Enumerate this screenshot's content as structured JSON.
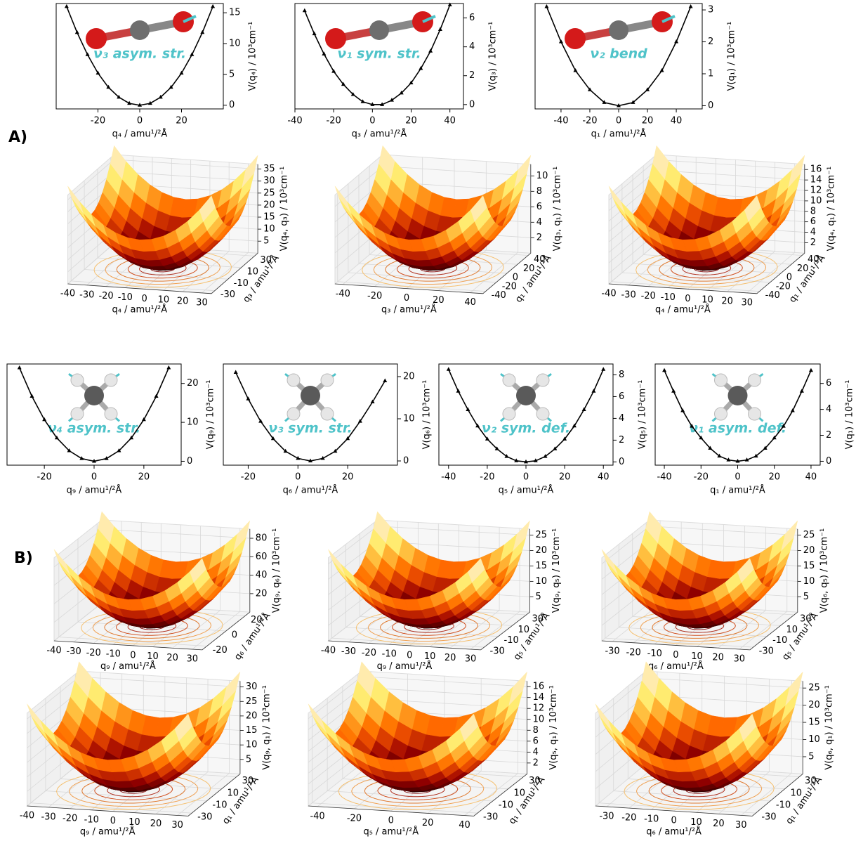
{
  "labels": [
    "A)",
    "B)"
  ],
  "chart_data": [
    {
      "type": "line",
      "xlabel": "q₄  / amu¹/²Å",
      "ylabel": "V(q₄) / 10³cm⁻¹",
      "annotation": "ν₃ asym. str.",
      "color": "#000000",
      "x": [
        -35,
        -30,
        -25,
        -20,
        -15,
        -10,
        -5,
        0,
        5,
        10,
        15,
        20,
        25,
        30,
        35
      ],
      "values": [
        16,
        11.8,
        8.2,
        5.2,
        2.9,
        1.3,
        0.3,
        0,
        0.3,
        1.3,
        2.9,
        5.2,
        8.2,
        11.8,
        16
      ],
      "xlim": [
        -40,
        40
      ],
      "ylim": [
        -0.6,
        16.5
      ],
      "xticks": [
        -20,
        0,
        20
      ],
      "yticks": [
        0,
        5,
        10,
        15
      ]
    },
    {
      "type": "line",
      "xlabel": "q₃  / amu¹/²Å",
      "ylabel": "V(q₃) / 10³cm⁻¹",
      "annotation": "ν₁ sym. str.",
      "color": "#000000",
      "x": [
        -35,
        -30,
        -25,
        -20,
        -15,
        -10,
        -5,
        0,
        5,
        10,
        15,
        20,
        25,
        30,
        35,
        40
      ],
      "values": [
        6.5,
        4.9,
        3.5,
        2.3,
        1.4,
        0.7,
        0.2,
        0,
        0,
        0.3,
        0.8,
        1.5,
        2.5,
        3.7,
        5.2,
        6.9
      ],
      "xlim": [
        -40,
        47
      ],
      "ylim": [
        -0.3,
        7
      ],
      "xticks": [
        -40,
        -20,
        0,
        20,
        40
      ],
      "yticks": [
        0,
        2,
        4,
        6
      ]
    },
    {
      "type": "line",
      "xlabel": "q₁  / amu¹/²Å",
      "ylabel": "V(q₁) / 10³cm⁻¹",
      "annotation": "ν₂ bend",
      "color": "#000000",
      "x": [
        -50,
        -40,
        -30,
        -20,
        -10,
        0,
        10,
        20,
        30,
        40,
        50
      ],
      "values": [
        3.1,
        2,
        1.1,
        0.5,
        0.1,
        0,
        0.1,
        0.5,
        1.1,
        2,
        3.1
      ],
      "xlim": [
        -58,
        58
      ],
      "ylim": [
        -0.1,
        3.2
      ],
      "xticks": [
        -40,
        -20,
        0,
        20,
        40
      ],
      "yticks": [
        0,
        1,
        2,
        3
      ]
    },
    {
      "type": "surface3d",
      "xlabel": "q₄ / amu¹/²Å",
      "ylabel": "q₃ / amu¹/²Å",
      "zlabel": "V(q₄, q₃) / 10³cm⁻¹",
      "xlim": [
        -40,
        35
      ],
      "ylim": [
        -35,
        35
      ],
      "zlim": [
        0,
        37
      ],
      "xticks": [
        -40,
        -30,
        -20,
        -10,
        0,
        10,
        20,
        30
      ],
      "yticks": [
        -30,
        -10,
        10,
        30
      ],
      "zticks": [
        5,
        10,
        15,
        20,
        25,
        30,
        35
      ]
    },
    {
      "type": "surface3d",
      "xlabel": "q₃ / amu¹/²Å",
      "ylabel": "q₁ / amu¹/²Å",
      "zlabel": "V(q₃, q₁) / 10³cm⁻¹",
      "xlim": [
        -45,
        48
      ],
      "ylim": [
        -45,
        45
      ],
      "zlim": [
        0,
        11.5
      ],
      "xticks": [
        -40,
        -20,
        0,
        20,
        40
      ],
      "yticks": [
        -40,
        -20,
        0,
        20,
        40
      ],
      "zticks": [
        2,
        4,
        6,
        8,
        10
      ]
    },
    {
      "type": "surface3d",
      "xlabel": "q₄ / amu¹/²Å",
      "ylabel": "q₁ / amu¹/²Å",
      "zlabel": "V(q₄, q₁) / 10³cm⁻¹",
      "xlim": [
        -40,
        35
      ],
      "ylim": [
        -45,
        45
      ],
      "zlim": [
        0,
        17
      ],
      "xticks": [
        -40,
        -30,
        -20,
        -10,
        0,
        10,
        20,
        30
      ],
      "yticks": [
        -40,
        -20,
        0,
        20,
        40
      ],
      "zticks": [
        2,
        4,
        6,
        8,
        10,
        12,
        14,
        16
      ]
    },
    {
      "type": "line",
      "xlabel": "q₉  / amu¹/²Å",
      "ylabel": "V(q₉) / 10³cm⁻¹",
      "annotation": "ν₄ asym. str.",
      "color": "#000000",
      "x": [
        -30,
        -25,
        -20,
        -15,
        -10,
        -5,
        0,
        5,
        10,
        15,
        20,
        25,
        30
      ],
      "values": [
        24,
        16.7,
        10.7,
        6,
        2.7,
        0.7,
        0,
        0.7,
        2.7,
        6,
        10.7,
        16.7,
        24
      ],
      "xlim": [
        -35,
        35
      ],
      "ylim": [
        -1,
        25
      ],
      "xticks": [
        -20,
        0,
        20
      ],
      "yticks": [
        0,
        10,
        20
      ]
    },
    {
      "type": "line",
      "xlabel": "q₆  / amu¹/²Å",
      "ylabel": "V(q₆) / 10³cm⁻¹",
      "annotation": "ν₃ sym. str.",
      "color": "#000000",
      "x": [
        -25,
        -20,
        -15,
        -10,
        -5,
        0,
        5,
        10,
        15,
        20,
        25,
        30,
        35
      ],
      "values": [
        21,
        14.7,
        9.4,
        5.3,
        2.3,
        0.6,
        0,
        0.6,
        2.3,
        5.3,
        9.4,
        14,
        19
      ],
      "xlim": [
        -30,
        40
      ],
      "ylim": [
        -1,
        23
      ],
      "xticks": [
        -20,
        0,
        20
      ],
      "yticks": [
        0,
        10,
        20
      ]
    },
    {
      "type": "line",
      "xlabel": "q₅  / amu¹/²Å",
      "ylabel": "V(q₅) / 10³cm⁻¹",
      "annotation": "ν₂ sym. def.",
      "color": "#000000",
      "x": [
        -40,
        -35,
        -30,
        -25,
        -20,
        -15,
        -10,
        -5,
        0,
        5,
        10,
        15,
        20,
        25,
        30,
        35,
        40
      ],
      "values": [
        8.5,
        6.5,
        4.8,
        3.3,
        2.1,
        1.2,
        0.5,
        0.1,
        0,
        0.1,
        0.5,
        1.2,
        2.1,
        3.3,
        4.8,
        6.5,
        8.5
      ],
      "xlim": [
        -45,
        45
      ],
      "ylim": [
        -0.3,
        9
      ],
      "xticks": [
        -40,
        -20,
        0,
        20,
        40
      ],
      "yticks": [
        0,
        2,
        4,
        6,
        8
      ]
    },
    {
      "type": "line",
      "xlabel": "q₁  / amu¹/²Å",
      "ylabel": "V(q₁) / 10³cm⁻¹",
      "annotation": "ν₁ asym. def.",
      "color": "#000000",
      "x": [
        -40,
        -35,
        -30,
        -25,
        -20,
        -15,
        -10,
        -5,
        0,
        5,
        10,
        15,
        20,
        25,
        30,
        35,
        40
      ],
      "values": [
        7,
        5.4,
        3.9,
        2.7,
        1.8,
        1,
        0.4,
        0.1,
        0,
        0.1,
        0.4,
        1,
        1.8,
        2.7,
        3.9,
        5.4,
        7
      ],
      "xlim": [
        -45,
        45
      ],
      "ylim": [
        -0.3,
        7.5
      ],
      "xticks": [
        -40,
        -20,
        0,
        20,
        40
      ],
      "yticks": [
        0,
        2,
        4,
        6
      ]
    },
    {
      "type": "surface3d",
      "xlabel": "q₉ / amu¹/²Å",
      "ylabel": "q₆ / amu¹/²Å",
      "zlabel": "V(q₉, q₆) / 10³cm⁻¹",
      "xlim": [
        -40,
        35
      ],
      "ylim": [
        -25,
        25
      ],
      "zlim": [
        0,
        90
      ],
      "xticks": [
        -40,
        -30,
        -20,
        -10,
        0,
        10,
        20,
        30
      ],
      "yticks": [
        -20,
        0,
        20
      ],
      "zticks": [
        20,
        40,
        60,
        80
      ]
    },
    {
      "type": "surface3d",
      "xlabel": "q₉ / amu¹/²Å",
      "ylabel": "q₅ / amu¹/²Å",
      "zlabel": "V(q₉, q₅) / 10³cm⁻¹",
      "xlim": [
        -40,
        35
      ],
      "ylim": [
        -35,
        35
      ],
      "zlim": [
        0,
        27
      ],
      "xticks": [
        -40,
        -30,
        -20,
        -10,
        0,
        10,
        20,
        30
      ],
      "yticks": [
        -30,
        -10,
        10,
        30
      ],
      "zticks": [
        5,
        10,
        15,
        20,
        25
      ]
    },
    {
      "type": "surface3d",
      "xlabel": "q₆ / amu¹/²Å",
      "ylabel": "q₅ / amu¹/²Å",
      "zlabel": "V(q₆, q₅) / 10³cm⁻¹",
      "xlim": [
        -35,
        35
      ],
      "ylim": [
        -35,
        35
      ],
      "zlim": [
        0,
        27
      ],
      "xticks": [
        -30,
        -20,
        -10,
        0,
        10,
        20,
        30
      ],
      "yticks": [
        -30,
        -10,
        10,
        30
      ],
      "zticks": [
        5,
        10,
        15,
        20,
        25
      ]
    },
    {
      "type": "surface3d",
      "xlabel": "q₉ / amu¹/²Å",
      "ylabel": "q₁ / amu¹/²Å",
      "zlabel": "V(q₉, q₁) / 10³cm⁻¹",
      "xlim": [
        -40,
        35
      ],
      "ylim": [
        -35,
        35
      ],
      "zlim": [
        0,
        32
      ],
      "xticks": [
        -40,
        -30,
        -20,
        -10,
        0,
        10,
        20,
        30
      ],
      "yticks": [
        -30,
        -10,
        10,
        30
      ],
      "zticks": [
        5,
        10,
        15,
        20,
        25,
        30
      ]
    },
    {
      "type": "surface3d",
      "xlabel": "q₅ / amu¹/²Å",
      "ylabel": "q₁ / amu¹/²Å",
      "zlabel": "V(q₅, q₁) / 10³cm⁻¹",
      "xlim": [
        -45,
        45
      ],
      "ylim": [
        -35,
        35
      ],
      "zlim": [
        0,
        17
      ],
      "xticks": [
        -40,
        -20,
        0,
        20,
        40
      ],
      "yticks": [
        -30,
        -10,
        10,
        30
      ],
      "zticks": [
        2,
        4,
        6,
        8,
        10,
        12,
        14,
        16
      ]
    },
    {
      "type": "surface3d",
      "xlabel": "q₆ / amu¹/²Å",
      "ylabel": "q₁ / amu¹/²Å",
      "zlabel": "V(q₆, q₁) / 10³cm⁻¹",
      "xlim": [
        -35,
        35
      ],
      "ylim": [
        -35,
        35
      ],
      "zlim": [
        0,
        27
      ],
      "xticks": [
        -30,
        -20,
        -10,
        0,
        10,
        20,
        30
      ],
      "yticks": [
        -30,
        -10,
        10,
        30
      ],
      "zticks": [
        5,
        10,
        15,
        20,
        25
      ]
    }
  ]
}
